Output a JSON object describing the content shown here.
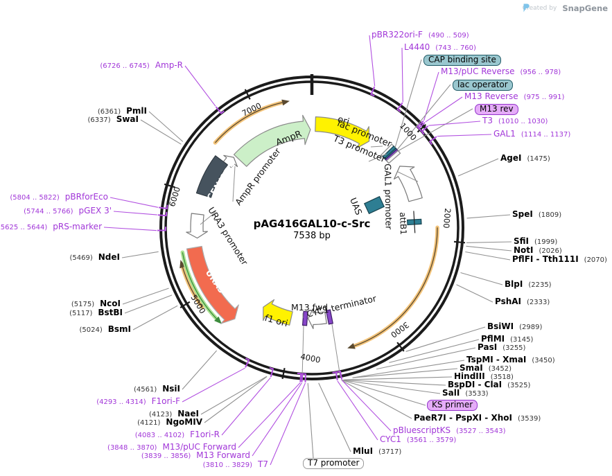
{
  "credit": {
    "prefix": "Created by",
    "brand": "SnapGene"
  },
  "plasmid": {
    "name": "pAG416GAL10-c-Src",
    "size": "7538 bp",
    "length_bp": 7538
  },
  "ticks": [
    "1000",
    "2000",
    "3000",
    "4000",
    "5000",
    "6000",
    "7000"
  ],
  "features": {
    "ori": "ori",
    "lac_promoter": "lac promoter",
    "t3_promoter": "T3 promoter",
    "gal1_promoter": "GAL1 promoter",
    "uas": "UAS",
    "attb1": "attB1",
    "cyc1_terminator": "CYC1 terminator",
    "m13_fwd": "M13 fwd",
    "f1_ori": "f1 ori",
    "ura3": "URA3",
    "ura3_promoter": "URA3 promoter",
    "cen_ars": "CEN/ARS",
    "ampr_promoter": "AmpR promoter",
    "ampr": "AmpR"
  },
  "callouts": [
    {
      "label": "pBR322ori-F",
      "pos": "(490 .. 509)",
      "kind": "primer"
    },
    {
      "label": "L4440",
      "pos": "(743 .. 760)",
      "kind": "primer"
    },
    {
      "label": "CAP binding site",
      "pos": "",
      "kind": "tag-teal"
    },
    {
      "label": "M13/pUC Reverse",
      "pos": "(956 .. 978)",
      "kind": "primer"
    },
    {
      "label": "lac operator",
      "pos": "",
      "kind": "tag-teal"
    },
    {
      "label": "M13 Reverse",
      "pos": "(975 .. 991)",
      "kind": "primer"
    },
    {
      "label": "M13 rev",
      "pos": "",
      "kind": "tag-purple"
    },
    {
      "label": "T3",
      "pos": "(1010 .. 1030)",
      "kind": "primer"
    },
    {
      "label": "GAL1",
      "pos": "(1114 .. 1137)",
      "kind": "primer"
    },
    {
      "label": "AgeI",
      "pos": "(1475)",
      "kind": "enzyme"
    },
    {
      "label": "SpeI",
      "pos": "(1809)",
      "kind": "enzyme"
    },
    {
      "label": "SfiI",
      "pos": "(1999)",
      "kind": "enzyme"
    },
    {
      "label": "NotI",
      "pos": "(2026)",
      "kind": "enzyme"
    },
    {
      "label": "PflFI - Tth111I",
      "pos": "(2070)",
      "kind": "enzyme"
    },
    {
      "label": "BlpI",
      "pos": "(2235)",
      "kind": "enzyme"
    },
    {
      "label": "PshAI",
      "pos": "(2333)",
      "kind": "enzyme"
    },
    {
      "label": "BsiWI",
      "pos": "(2989)",
      "kind": "enzyme"
    },
    {
      "label": "PflMI",
      "pos": "(3145)",
      "kind": "enzyme"
    },
    {
      "label": "PasI",
      "pos": "(3255)",
      "kind": "enzyme"
    },
    {
      "label": "TspMI - XmaI",
      "pos": "(3450)",
      "kind": "enzyme"
    },
    {
      "label": "SmaI",
      "pos": "(3452)",
      "kind": "enzyme"
    },
    {
      "label": "HindIII",
      "pos": "(3518)",
      "kind": "enzyme"
    },
    {
      "label": "BspDI - ClaI",
      "pos": "(3525)",
      "kind": "enzyme"
    },
    {
      "label": "SalI",
      "pos": "(3533)",
      "kind": "enzyme"
    },
    {
      "label": "KS primer",
      "pos": "",
      "kind": "tag-purple"
    },
    {
      "label": "PaeR7I - PspXI - XhoI",
      "pos": "(3539)",
      "kind": "enzyme"
    },
    {
      "label": "pBluescriptKS",
      "pos": "(3527 .. 3543)",
      "kind": "primer"
    },
    {
      "label": "CYC1",
      "pos": "(3561 .. 3579)",
      "kind": "primer"
    },
    {
      "label": "MluI",
      "pos": "(3717)",
      "kind": "enzyme"
    },
    {
      "label": "T7 promoter",
      "pos": "",
      "kind": "tag-plain"
    },
    {
      "label": "T7",
      "pos": "(3810 .. 3829)",
      "kind": "primer"
    },
    {
      "label": "M13 Forward",
      "pos": "(3839 .. 3856)",
      "kind": "primer"
    },
    {
      "label": "M13/pUC Forward",
      "pos": "(3848 .. 3870)",
      "kind": "primer"
    },
    {
      "label": "F1ori-R",
      "pos": "(4083 .. 4102)",
      "kind": "primer"
    },
    {
      "label": "NgoMIV",
      "pos": "(4121)",
      "kind": "enzyme"
    },
    {
      "label": "NaeI",
      "pos": "(4123)",
      "kind": "enzyme"
    },
    {
      "label": "F1ori-F",
      "pos": "(4293 .. 4314)",
      "kind": "primer"
    },
    {
      "label": "NsiI",
      "pos": "(4561)",
      "kind": "enzyme"
    },
    {
      "label": "BsmI",
      "pos": "(5024)",
      "kind": "enzyme"
    },
    {
      "label": "BstBI",
      "pos": "(5117)",
      "kind": "enzyme"
    },
    {
      "label": "NcoI",
      "pos": "(5175)",
      "kind": "enzyme"
    },
    {
      "label": "NdeI",
      "pos": "(5469)",
      "kind": "enzyme"
    },
    {
      "label": "pRS-marker",
      "pos": "(5625 .. 5644)",
      "kind": "primer"
    },
    {
      "label": "pGEX 3'",
      "pos": "(5744 .. 5766)",
      "kind": "primer"
    },
    {
      "label": "pBRforEco",
      "pos": "(5804 .. 5822)",
      "kind": "primer"
    },
    {
      "label": "SwaI",
      "pos": "(6337)",
      "kind": "enzyme"
    },
    {
      "label": "PmlI",
      "pos": "(6361)",
      "kind": "enzyme"
    },
    {
      "label": "Amp-R",
      "pos": "(6726 .. 6745)",
      "kind": "primer"
    }
  ],
  "colors": {
    "primer_purple": "#a136d8",
    "connector_gray": "#909090",
    "backbone_black": "#1b1b1b",
    "teal_tag_bg": "#9ac7cf",
    "purple_tag_bg": "#e5acf8",
    "feature_yellow": "#fff200",
    "feature_pale_green": "#ccefc8",
    "feature_orange_red": "#f26b4f",
    "feature_slate": "#46535e",
    "feature_teal": "#2e7e93",
    "orf_arc_orange": "#f3c379",
    "orf_arc_green": "#abe292"
  }
}
